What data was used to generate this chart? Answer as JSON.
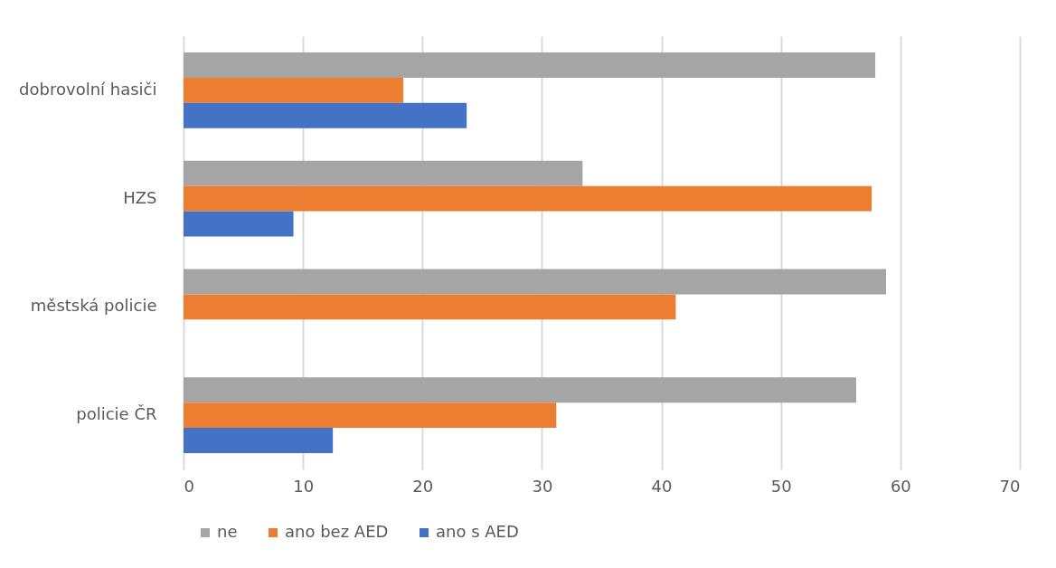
{
  "chart_data": {
    "type": "bar",
    "orientation": "horizontal",
    "categories": [
      "dobrovolní hasiči",
      "HZS",
      "městská policie",
      "policie ČR"
    ],
    "series": [
      {
        "name": "ne",
        "color": "#a5a5a5",
        "values": [
          57.9,
          33.4,
          58.8,
          56.3
        ]
      },
      {
        "name": "ano bez AED",
        "color": "#ed7d31",
        "values": [
          18.4,
          57.6,
          41.2,
          31.2
        ]
      },
      {
        "name": "ano s AED",
        "color": "#4472c4",
        "values": [
          23.7,
          9.2,
          null,
          12.5
        ]
      }
    ],
    "xlim": [
      0,
      70
    ],
    "xticks": [
      0,
      10,
      20,
      30,
      40,
      50,
      60,
      70
    ],
    "grid": "x",
    "legend": "bottom"
  }
}
